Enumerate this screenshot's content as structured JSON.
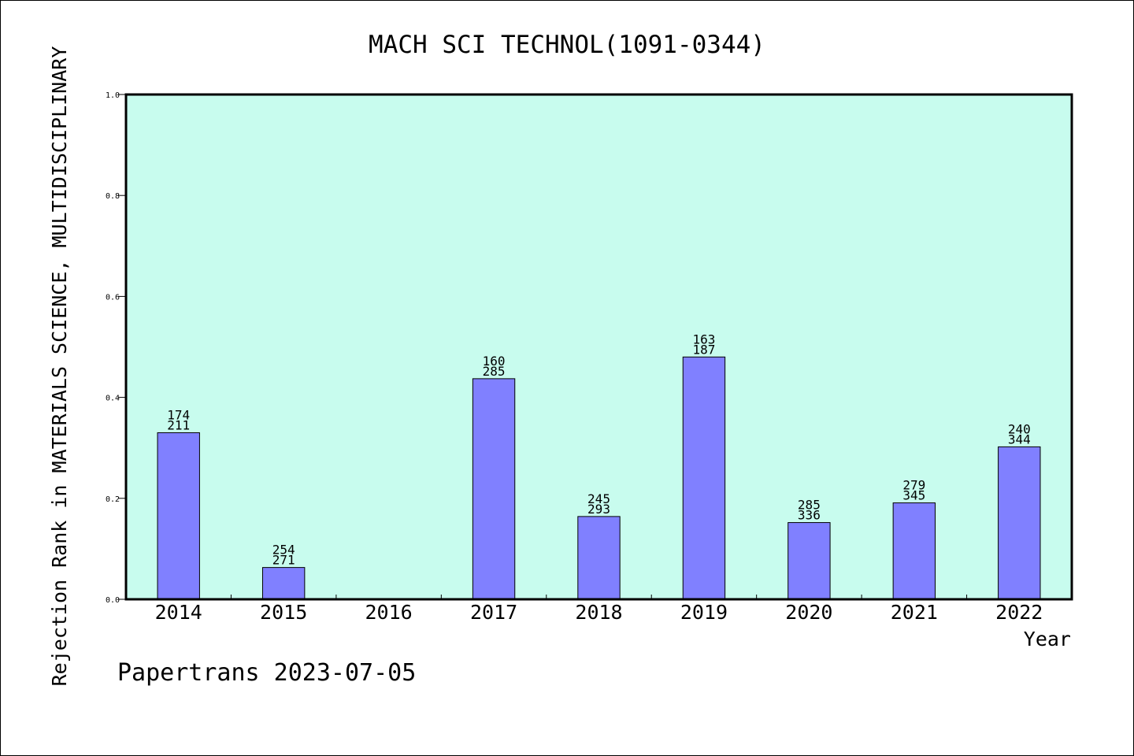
{
  "chart_data": {
    "type": "bar",
    "title": "MACH SCI TECHNOL(1091-0344)",
    "xlabel": "Year",
    "ylabel": "Rejection Rank in MATERIALS SCIENCE, MULTIDISCIPLINARY",
    "ylim": [
      0,
      1.0
    ],
    "yticks": [
      "0.0",
      "0.2",
      "0.4",
      "0.6",
      "0.8",
      "1.0"
    ],
    "categories": [
      "2014",
      "2015",
      "2016",
      "2017",
      "2018",
      "2019",
      "2020",
      "2021",
      "2022"
    ],
    "values": [
      0.33,
      0.063,
      null,
      0.437,
      0.164,
      0.48,
      0.152,
      0.191,
      0.302
    ],
    "labels_top": [
      "174",
      "254",
      "",
      "160",
      "245",
      "163",
      "285",
      "279",
      "240"
    ],
    "labels_bottom": [
      "211",
      "271",
      "",
      "285",
      "293",
      "187",
      "336",
      "345",
      "344"
    ],
    "grid": false,
    "colors": {
      "plot_background": "#c8fcee",
      "bar_fill": "#8080ff",
      "bar_stroke": "#000000"
    }
  },
  "footer": {
    "credit": "Papertrans 2023-07-05"
  }
}
